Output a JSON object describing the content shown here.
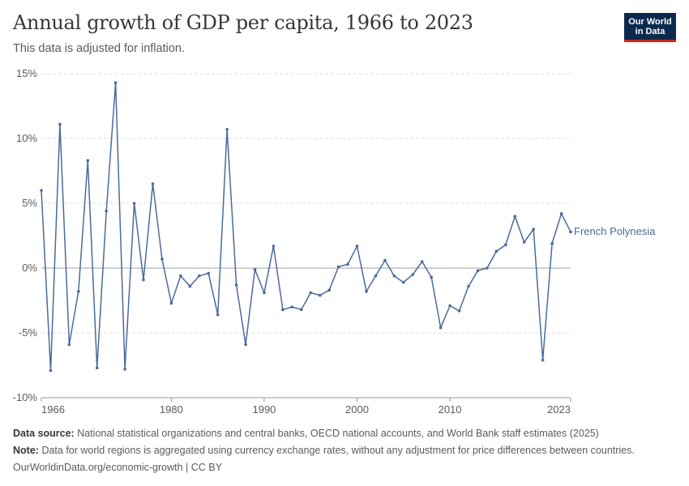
{
  "header": {
    "title": "Annual growth of GDP per capita, 1966 to 2023",
    "subtitle": "This data is adjusted for inflation.",
    "logo_line1": "Our World",
    "logo_line2": "in Data"
  },
  "footer": {
    "source_label": "Data source:",
    "source_text": "National statistical organizations and central banks, OECD national accounts, and World Bank staff estimates (2025)",
    "note_label": "Note:",
    "note_text": "Data for world regions is aggregated using currency exchange rates, without any adjustment for price differences between countries.",
    "url_text": "OurWorldinData.org/economic-growth | CC BY"
  },
  "colors": {
    "series": "#4c6a9c",
    "grid": "#dddddd",
    "zero": "#a1a1a1",
    "text": "#5b5b5b"
  },
  "chart_data": {
    "type": "line",
    "title": "Annual growth of GDP per capita, 1966 to 2023",
    "subtitle": "This data is adjusted for inflation.",
    "xlim": [
      1966,
      2023
    ],
    "ylim": [
      -10,
      15
    ],
    "x_ticks": [
      1966,
      1980,
      1990,
      2000,
      2010,
      2023
    ],
    "y_ticks": [
      -10,
      -5,
      0,
      5,
      10,
      15
    ],
    "y_tick_labels": [
      "-10%",
      "-5%",
      "0%",
      "5%",
      "10%",
      "15%"
    ],
    "grid": "horizontal dashed",
    "series": [
      {
        "name": "French Polynesia",
        "x": [
          1966,
          1967,
          1968,
          1969,
          1970,
          1971,
          1972,
          1973,
          1974,
          1975,
          1976,
          1977,
          1978,
          1979,
          1980,
          1981,
          1982,
          1983,
          1984,
          1985,
          1986,
          1987,
          1988,
          1989,
          1990,
          1991,
          1992,
          1993,
          1994,
          1995,
          1996,
          1997,
          1998,
          1999,
          2000,
          2001,
          2002,
          2003,
          2004,
          2005,
          2006,
          2007,
          2008,
          2009,
          2010,
          2011,
          2012,
          2013,
          2014,
          2015,
          2016,
          2017,
          2018,
          2019,
          2020,
          2021,
          2022,
          2023
        ],
        "values": [
          6.0,
          -7.9,
          11.1,
          -5.9,
          -1.8,
          8.3,
          -7.7,
          4.4,
          14.3,
          -7.8,
          5.0,
          -0.9,
          6.5,
          0.7,
          -2.7,
          -0.6,
          -1.4,
          -0.6,
          -0.4,
          -3.6,
          10.7,
          -1.3,
          -5.9,
          -0.1,
          -1.9,
          1.7,
          -3.2,
          -3.0,
          -3.2,
          -1.9,
          -2.1,
          -1.7,
          0.1,
          0.3,
          1.7,
          -1.8,
          -0.6,
          0.6,
          -0.6,
          -1.1,
          -0.5,
          0.5,
          -0.7,
          -4.6,
          -2.9,
          -3.3,
          -1.4,
          -0.2,
          0.0,
          1.3,
          1.8,
          4.0,
          2.0,
          3.0,
          -7.1,
          1.9,
          4.2,
          2.8
        ]
      }
    ]
  }
}
